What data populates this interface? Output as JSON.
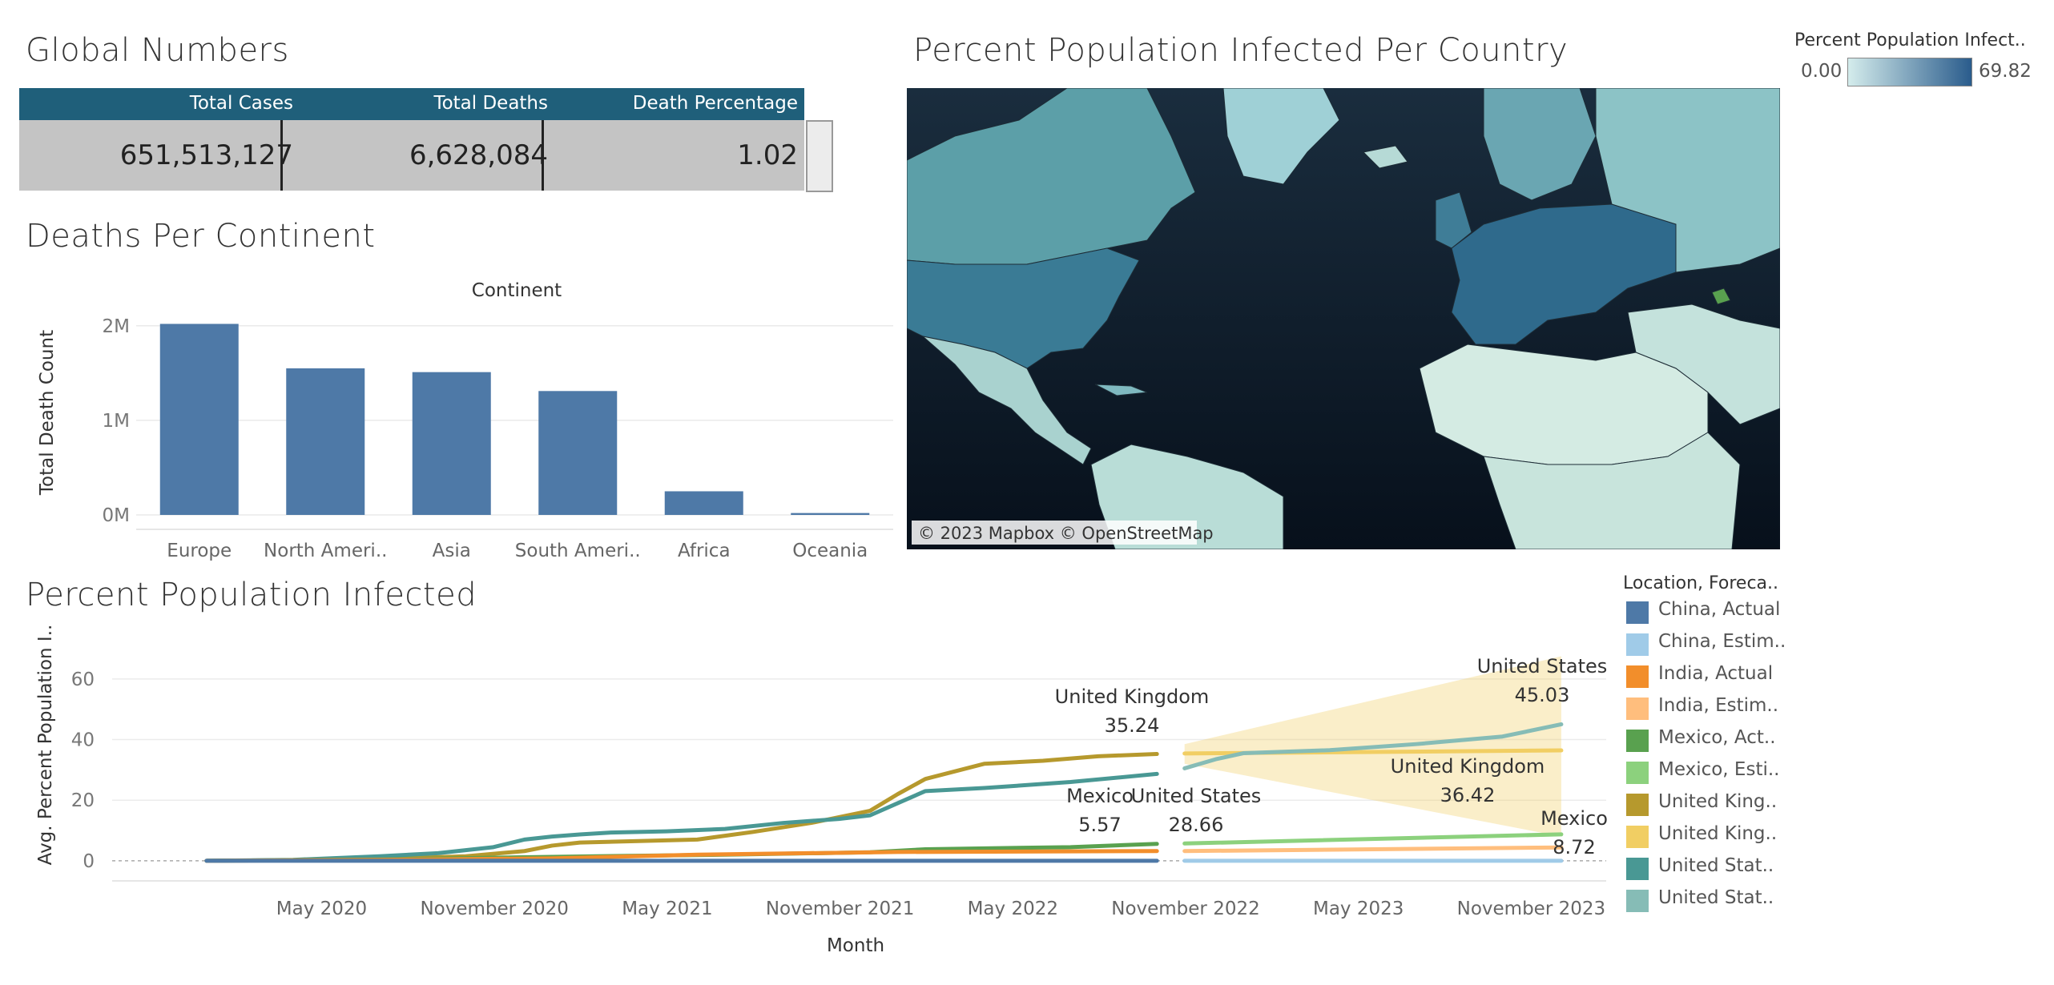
{
  "global_numbers": {
    "title": "Global Numbers",
    "headers": [
      "Total Cases",
      "Total Deaths",
      "Death Percentage"
    ],
    "values": [
      "651,513,127",
      "6,628,084",
      "1.02"
    ]
  },
  "map": {
    "title": "Percent Population Infected Per Country",
    "attribution": "© 2023 Mapbox © OpenStreetMap",
    "legend_title": "Percent Population Infect..",
    "legend_min": "0.00",
    "legend_max": "69.82",
    "colors": {
      "low": "#d4ecec",
      "high": "#2a5c8c",
      "ocean": "#0f1a26"
    }
  },
  "location_legend": {
    "title": "Location, Foreca..",
    "items": [
      {
        "label": "China, Actual",
        "color": "#4e79a7"
      },
      {
        "label": "China, Estim..",
        "color": "#a0cbe8"
      },
      {
        "label": "India, Actual",
        "color": "#f28e2b"
      },
      {
        "label": "India, Estim..",
        "color": "#ffbe7d"
      },
      {
        "label": "Mexico, Act..",
        "color": "#59a14f"
      },
      {
        "label": "Mexico, Esti..",
        "color": "#8cd17d"
      },
      {
        "label": "United King..",
        "color": "#b6992d"
      },
      {
        "label": "United King..",
        "color": "#f1ce63"
      },
      {
        "label": "United Stat..",
        "color": "#499894"
      },
      {
        "label": "United Stat..",
        "color": "#86bcb6"
      }
    ]
  },
  "chart_data": [
    {
      "type": "bar",
      "title": "Deaths Per Continent",
      "header": "Continent",
      "ylabel": "Total Death Count",
      "categories": [
        "Europe",
        "North Ameri..",
        "Asia",
        "South Ameri..",
        "Africa",
        "Oceania"
      ],
      "values": [
        2020000,
        1550000,
        1510000,
        1310000,
        250000,
        20000
      ],
      "ylim": [
        0,
        2100000
      ],
      "yticks": [
        {
          "v": 0,
          "label": "0M"
        },
        {
          "v": 1000000,
          "label": "1M"
        },
        {
          "v": 2000000,
          "label": "2M"
        }
      ],
      "color": "#4e79a7"
    },
    {
      "type": "line",
      "title": "Percent Population Infected",
      "xlabel": "Month",
      "ylabel": "Avg. Percent Population I..",
      "ylim": [
        -4,
        70
      ],
      "yticks": [
        0,
        20,
        40,
        60
      ],
      "xticks": [
        "May 2020",
        "November 2020",
        "May 2021",
        "November 2021",
        "May 2022",
        "November 2022",
        "May 2023",
        "November 2023"
      ],
      "xtick_pos": [
        2020.333,
        2020.833,
        2021.333,
        2021.833,
        2022.333,
        2022.833,
        2023.333,
        2023.833
      ],
      "xlim": [
        2019.75,
        2024.05
      ],
      "series": [
        {
          "name": "United Kingdom",
          "kind": "Actual",
          "color": "#b6992d",
          "x": [
            2020.0,
            2020.25,
            2020.5,
            2020.75,
            2020.92,
            2021.0,
            2021.08,
            2021.25,
            2021.42,
            2021.58,
            2021.75,
            2021.92,
            2022.0,
            2022.08,
            2022.25,
            2022.42,
            2022.58,
            2022.75
          ],
          "y": [
            0,
            0.2,
            0.6,
            1.5,
            3.2,
            5.0,
            6.0,
            6.5,
            7.0,
            9.5,
            12.5,
            16.5,
            22.0,
            27.0,
            32.0,
            33.0,
            34.5,
            35.24
          ]
        },
        {
          "name": "United States",
          "kind": "Actual",
          "color": "#499894",
          "x": [
            2020.0,
            2020.25,
            2020.5,
            2020.67,
            2020.83,
            2020.92,
            2021.0,
            2021.08,
            2021.17,
            2021.33,
            2021.5,
            2021.67,
            2021.83,
            2021.92,
            2022.0,
            2022.08,
            2022.25,
            2022.5,
            2022.75
          ],
          "y": [
            0,
            0.3,
            1.5,
            2.5,
            4.5,
            7.0,
            8.0,
            8.7,
            9.3,
            9.7,
            10.5,
            12.5,
            13.8,
            15.0,
            19.0,
            23.0,
            24.0,
            26.0,
            28.66
          ]
        },
        {
          "name": "Mexico",
          "kind": "Actual",
          "color": "#59a14f",
          "x": [
            2020.0,
            2020.5,
            2021.0,
            2021.5,
            2021.92,
            2022.08,
            2022.5,
            2022.75
          ],
          "y": [
            0,
            0.4,
            1.3,
            2.0,
            2.8,
            3.8,
            4.5,
            5.57
          ]
        },
        {
          "name": "India",
          "kind": "Actual",
          "color": "#f28e2b",
          "x": [
            2020.0,
            2020.5,
            2021.0,
            2021.42,
            2022.0,
            2022.75
          ],
          "y": [
            0,
            0.3,
            0.8,
            2.0,
            2.9,
            3.2
          ]
        },
        {
          "name": "China",
          "kind": "Actual",
          "color": "#4e79a7",
          "x": [
            2020.0,
            2022.75
          ],
          "y": [
            0,
            0
          ]
        },
        {
          "name": "United Kingdom",
          "kind": "Estimate",
          "color": "#f1ce63",
          "x": [
            2022.83,
            2023.92
          ],
          "y": [
            35.4,
            36.42
          ],
          "band_upper": [
            38.5,
            67.5
          ],
          "band_lower": [
            32.0,
            8.0
          ]
        },
        {
          "name": "United States",
          "kind": "Estimate",
          "color": "#86bcb6",
          "x": [
            2022.83,
            2022.92,
            2023.0,
            2023.25,
            2023.5,
            2023.75,
            2023.92
          ],
          "y": [
            30.5,
            33.5,
            35.5,
            36.5,
            38.5,
            41.0,
            45.03
          ]
        },
        {
          "name": "Mexico",
          "kind": "Estimate",
          "color": "#8cd17d",
          "x": [
            2022.83,
            2023.92
          ],
          "y": [
            5.7,
            8.72
          ]
        },
        {
          "name": "India",
          "kind": "Estimate",
          "color": "#ffbe7d",
          "x": [
            2022.83,
            2023.92
          ],
          "y": [
            3.2,
            4.4
          ]
        },
        {
          "name": "China",
          "kind": "Estimate",
          "color": "#a0cbe8",
          "x": [
            2022.83,
            2023.92
          ],
          "y": [
            0,
            0
          ]
        }
      ],
      "annotations": [
        {
          "name": "United Kingdom",
          "value": "35.24"
        },
        {
          "name": "United States",
          "value": "28.66"
        },
        {
          "name": "Mexico",
          "value": "5.57"
        },
        {
          "name": "United States",
          "value": "45.03"
        },
        {
          "name": "United Kingdom",
          "value": "36.42"
        },
        {
          "name": "Mexico",
          "value": "8.72"
        }
      ]
    }
  ]
}
